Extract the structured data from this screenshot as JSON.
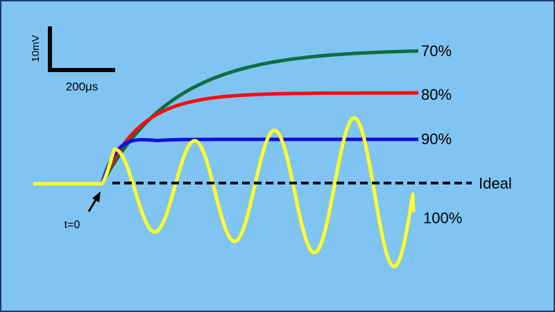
{
  "scale_bar": {
    "voltage": "10mV",
    "time": "200μs"
  },
  "traces": [
    {
      "label": "70%"
    },
    {
      "label": "80%"
    },
    {
      "label": "90%"
    },
    {
      "label": "100%"
    }
  ],
  "ideal": {
    "label": "Ideal"
  },
  "marker": {
    "label": "t=0"
  }
}
